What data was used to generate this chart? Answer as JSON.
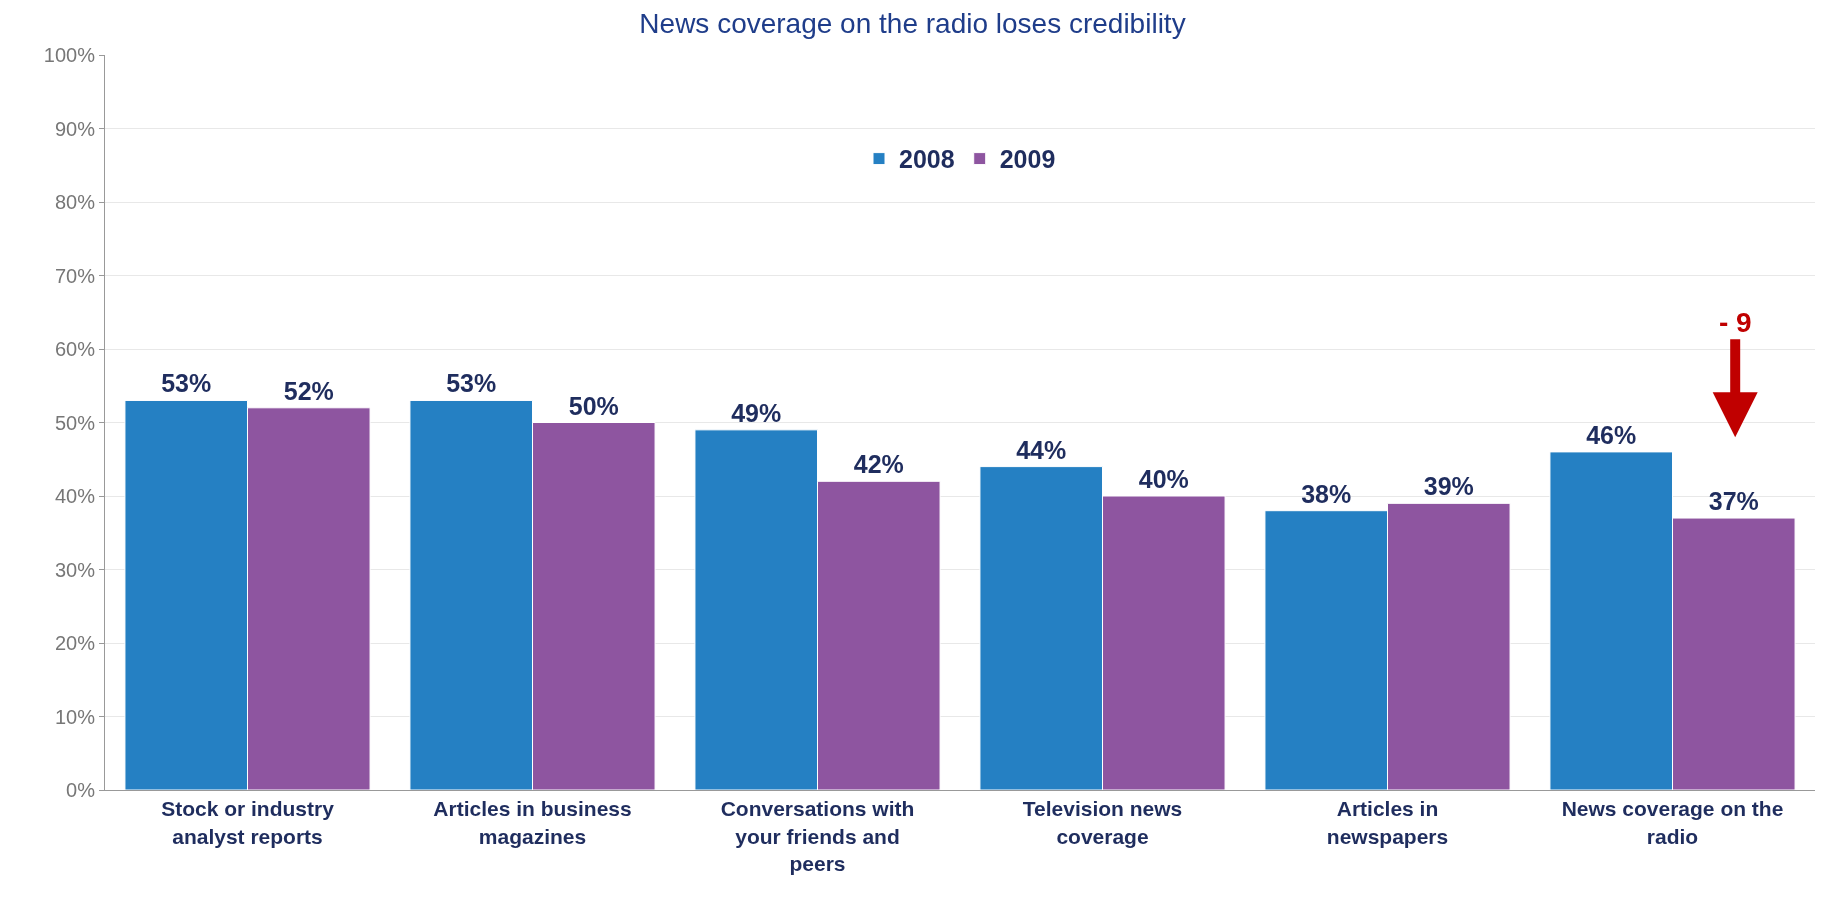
{
  "chart_data": {
    "type": "bar",
    "title": "News coverage on the radio loses credibility",
    "categories": [
      "Stock or industry analyst reports",
      "Articles in business magazines",
      "Conversations with your friends and peers",
      "Television news coverage",
      "Articles in newspapers",
      "News coverage on the radio"
    ],
    "series": [
      {
        "name": "2008",
        "color": "#2580c3",
        "values": [
          53,
          53,
          49,
          44,
          38,
          46
        ],
        "value_labels": [
          "53%",
          "53%",
          "49%",
          "44%",
          "38%",
          "46%"
        ]
      },
      {
        "name": "2009",
        "color": "#8e55a0",
        "values": [
          52,
          50,
          42,
          40,
          39,
          37
        ],
        "value_labels": [
          "52%",
          "50%",
          "42%",
          "40%",
          "39%",
          "37%"
        ]
      }
    ],
    "ylim": [
      0,
      100
    ],
    "yticks": [
      {
        "value": 0,
        "label": "0%"
      },
      {
        "value": 10,
        "label": "10%"
      },
      {
        "value": 20,
        "label": "20%"
      },
      {
        "value": 30,
        "label": "30%"
      },
      {
        "value": 40,
        "label": "40%"
      },
      {
        "value": 50,
        "label": "50%"
      },
      {
        "value": 60,
        "label": "60%"
      },
      {
        "value": 70,
        "label": "70%"
      },
      {
        "value": 80,
        "label": "80%"
      },
      {
        "value": 90,
        "label": "90%"
      },
      {
        "value": 100,
        "label": "100%"
      }
    ],
    "grid": "y",
    "legend": "top",
    "annotations": [
      "- 9"
    ]
  }
}
